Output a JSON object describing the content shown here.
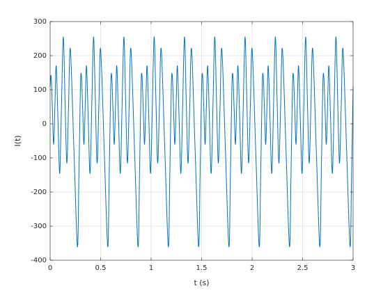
{
  "chart_data": {
    "type": "line",
    "xlabel": "t (s)",
    "ylabel": "I(t)",
    "xlim": [
      0,
      3
    ],
    "xticks": [
      0,
      0.5,
      1,
      1.5,
      2,
      2.5,
      3
    ],
    "ylim": [
      -400,
      300
    ],
    "yticks": [
      -400,
      -300,
      -200,
      -100,
      0,
      100,
      200,
      300
    ],
    "grid": true,
    "series": [
      {
        "color": "#0072bd",
        "x": [
          0,
          0.01,
          0.0225,
          0.035,
          0.0475,
          0.06,
          0.0775,
          0.095,
          0.1125,
          0.13,
          0.1475,
          0.165,
          0.1825,
          0.2,
          0.235,
          0.27,
          0.285,
          0.3,
          0.31,
          0.3225,
          0.335,
          0.3475,
          0.36,
          0.3775,
          0.395,
          0.4125,
          0.43,
          0.4475,
          0.465,
          0.4825,
          0.5,
          0.535,
          0.57,
          0.585,
          0.6,
          0.61,
          0.6225,
          0.635,
          0.6475,
          0.66,
          0.6775,
          0.695,
          0.7125,
          0.73,
          0.7475,
          0.765,
          0.7825,
          0.8,
          0.835,
          0.87,
          0.885,
          0.9,
          0.91,
          0.9225,
          0.935,
          0.9475,
          0.96,
          0.9775,
          0.995,
          1.0125,
          1.03,
          1.0475,
          1.065,
          1.0825,
          1.1,
          1.135,
          1.17,
          1.185,
          1.2,
          1.21,
          1.2225,
          1.235,
          1.2475,
          1.26,
          1.2775,
          1.295,
          1.3125,
          1.33,
          1.3475,
          1.365,
          1.3825,
          1.4,
          1.435,
          1.47,
          1.485,
          1.5,
          1.51,
          1.5225,
          1.535,
          1.5475,
          1.56,
          1.5775,
          1.595,
          1.6125,
          1.63,
          1.6475,
          1.665,
          1.6825,
          1.7,
          1.735,
          1.77,
          1.785,
          1.8,
          1.81,
          1.8225,
          1.835,
          1.8475,
          1.86,
          1.8775,
          1.895,
          1.9125,
          1.93,
          1.9475,
          1.965,
          1.9825,
          2.0,
          2.035,
          2.07,
          2.085,
          2.1,
          2.11,
          2.1225,
          2.135,
          2.1475,
          2.16,
          2.1775,
          2.195,
          2.2125,
          2.23,
          2.2475,
          2.265,
          2.2825,
          2.3,
          2.335,
          2.37,
          2.385,
          2.4,
          2.41,
          2.4225,
          2.435,
          2.4475,
          2.46,
          2.4775,
          2.495,
          2.5125,
          2.53,
          2.5475,
          2.565,
          2.5825,
          2.6,
          2.635,
          2.67,
          2.685,
          2.7,
          2.71,
          2.7225,
          2.735,
          2.7475,
          2.76,
          2.7775,
          2.795,
          2.8125,
          2.83,
          2.8475,
          2.865,
          2.8825,
          2.9,
          2.935,
          2.97,
          2.985,
          3
        ],
        "values": [
          110,
          140,
          40,
          -60,
          55,
          170,
          12,
          -145,
          55,
          255,
          70,
          -115,
          52,
          220,
          -70,
          -360,
          -150,
          110,
          140,
          40,
          -60,
          55,
          170,
          12,
          -145,
          55,
          255,
          70,
          -115,
          52,
          220,
          -70,
          -360,
          -150,
          110,
          140,
          40,
          -60,
          55,
          170,
          12,
          -145,
          55,
          255,
          70,
          -115,
          52,
          220,
          -70,
          -360,
          -150,
          110,
          140,
          40,
          -60,
          55,
          170,
          12,
          -145,
          55,
          255,
          70,
          -115,
          52,
          220,
          -70,
          -360,
          -150,
          110,
          140,
          40,
          -60,
          55,
          170,
          12,
          -145,
          55,
          255,
          70,
          -115,
          52,
          220,
          -70,
          -360,
          -150,
          110,
          140,
          40,
          -60,
          55,
          170,
          12,
          -145,
          55,
          255,
          70,
          -115,
          52,
          220,
          -70,
          -360,
          -150,
          110,
          140,
          40,
          -60,
          55,
          170,
          12,
          -145,
          55,
          255,
          70,
          -115,
          52,
          220,
          -70,
          -360,
          -150,
          110,
          140,
          40,
          -60,
          55,
          170,
          12,
          -145,
          55,
          255,
          70,
          -115,
          52,
          220,
          -70,
          -360,
          -150,
          110,
          140,
          40,
          -60,
          55,
          170,
          12,
          -145,
          55,
          255,
          70,
          -115,
          52,
          220,
          -70,
          -360,
          -150,
          110,
          140,
          40,
          -60,
          55,
          170,
          12,
          -145,
          55,
          255,
          70,
          -115,
          52,
          220,
          -70,
          -360,
          -150,
          110
        ]
      }
    ]
  }
}
